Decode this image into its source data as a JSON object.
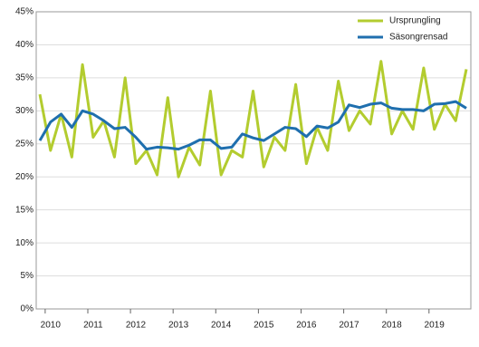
{
  "chart_data": {
    "type": "line",
    "categories": [
      null,
      "2010",
      null,
      null,
      null,
      "2011",
      null,
      null,
      null,
      "2012",
      null,
      null,
      null,
      "2013",
      null,
      null,
      null,
      "2014",
      null,
      null,
      null,
      "2015",
      null,
      null,
      null,
      "2016",
      null,
      null,
      null,
      "2017",
      null,
      null,
      null,
      "2018",
      null,
      null,
      null,
      "2019",
      null,
      null,
      null
    ],
    "series": [
      {
        "name": "Ursprungling",
        "color": "#b3cc2f",
        "values": [
          32.5,
          24,
          29.5,
          23,
          37,
          26,
          28.5,
          23,
          35,
          22,
          24,
          20.3,
          32,
          20,
          24.5,
          21.8,
          33,
          20.3,
          24,
          23,
          33,
          21.5,
          26,
          24,
          34,
          22,
          27.5,
          24,
          34.5,
          27,
          30,
          28,
          37.5,
          26.5,
          30,
          27.2,
          36.5,
          27.2,
          31,
          28.5,
          36.3
        ]
      },
      {
        "name": "Säsongrensad",
        "color": "#1f6fae",
        "values": [
          25.5,
          28.3,
          29.5,
          27.5,
          30,
          29.5,
          28.5,
          27.3,
          27.5,
          26,
          24.2,
          24.5,
          24.4,
          24.2,
          24.8,
          25.6,
          25.6,
          24.3,
          24.5,
          26.5,
          25.9,
          25.5,
          26.5,
          27.5,
          27.3,
          26.1,
          27.7,
          27.4,
          28.3,
          30.9,
          30.5,
          31,
          31.2,
          30.4,
          30.2,
          30.2,
          30,
          31,
          31.1,
          31.4,
          30.4
        ]
      }
    ],
    "ylim": [
      0,
      45
    ],
    "yticks": [
      {
        "value": 0,
        "label": "0%"
      },
      {
        "value": 5,
        "label": "5%"
      },
      {
        "value": 10,
        "label": "10%"
      },
      {
        "value": 15,
        "label": "15%"
      },
      {
        "value": 20,
        "label": "20%"
      },
      {
        "value": 25,
        "label": "25%"
      },
      {
        "value": 30,
        "label": "30%"
      },
      {
        "value": 35,
        "label": "35%"
      },
      {
        "value": 40,
        "label": "40%"
      },
      {
        "value": 45,
        "label": "45%"
      }
    ],
    "grid": true,
    "legend": "upper right"
  }
}
